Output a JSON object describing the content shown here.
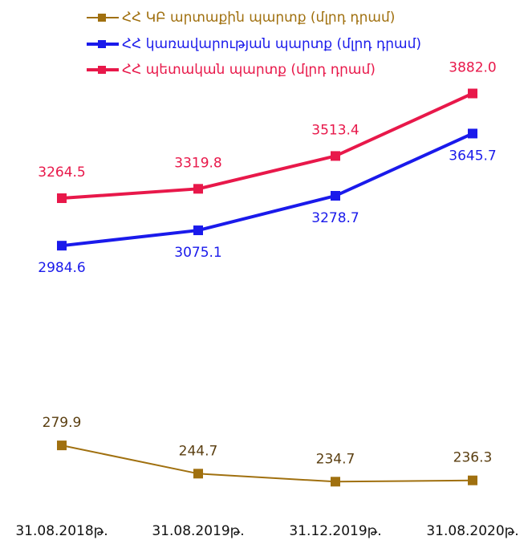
{
  "chart_data": {
    "type": "line",
    "categories": [
      "31.08.2018թ.",
      "31.08.2019թ.",
      "31.12.2019թ.",
      "31.08.2020թ."
    ],
    "ylim": [
      1500,
      3960
    ],
    "y2lim": [
      215,
      735
    ],
    "legend": "top-left",
    "series": [
      {
        "name": "ՀՀ ԿԲ արտաքին պարտք (մլրդ դրամ)",
        "color": "#a0700f",
        "axis": "y2",
        "values": [
          279.9,
          244.7,
          234.7,
          236.3
        ],
        "value_labels": [
          "279.9",
          "244.7",
          "234.7",
          "236.3"
        ]
      },
      {
        "name": "ՀՀ կառավարության պարտք (մլրդ դրամ)",
        "color": "#1a1aeb",
        "values": [
          2984.6,
          3075.1,
          3278.7,
          3645.7
        ],
        "value_labels": [
          "2984.6",
          "3075.1",
          "3278.7",
          "3645.7"
        ]
      },
      {
        "name": "ՀՀ պետական պարտք (մլրդ դրամ)",
        "color": "#e8184a",
        "values": [
          3264.5,
          3319.8,
          3513.4,
          3882.0
        ],
        "value_labels": [
          "3264.5",
          "3319.8",
          "3513.4",
          "3882.0"
        ]
      }
    ]
  }
}
